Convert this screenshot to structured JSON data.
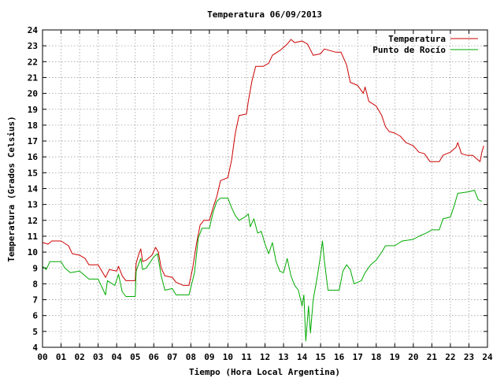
{
  "chart_data": {
    "type": "line",
    "title": "Temperatura 06/09/2013",
    "xlabel": "Tiempo (Hora Local Argentina)",
    "ylabel": "Temperatura (Grados Celsius)",
    "xlim": [
      0,
      24
    ],
    "ylim": [
      4,
      24
    ],
    "xticks": [
      0,
      1,
      2,
      3,
      4,
      5,
      6,
      7,
      8,
      9,
      10,
      11,
      12,
      13,
      14,
      15,
      16,
      17,
      18,
      19,
      20,
      21,
      22,
      23,
      24
    ],
    "xtick_labels": [
      "00",
      "01",
      "02",
      "03",
      "04",
      "05",
      "06",
      "07",
      "08",
      "09",
      "10",
      "11",
      "12",
      "13",
      "14",
      "15",
      "16",
      "17",
      "18",
      "19",
      "20",
      "21",
      "22",
      "23",
      "24"
    ],
    "yticks": [
      4,
      5,
      6,
      7,
      8,
      9,
      10,
      11,
      12,
      13,
      14,
      15,
      16,
      17,
      18,
      19,
      20,
      21,
      22,
      23,
      24
    ],
    "grid": true,
    "legend_position": "top-right",
    "series": [
      {
        "name": "Temperatura",
        "color": "#cc0000",
        "points": [
          [
            0.0,
            10.6
          ],
          [
            0.3,
            10.5
          ],
          [
            0.5,
            10.7
          ],
          [
            1.0,
            10.7
          ],
          [
            1.4,
            10.4
          ],
          [
            1.6,
            9.9
          ],
          [
            2.0,
            9.8
          ],
          [
            2.3,
            9.6
          ],
          [
            2.5,
            9.2
          ],
          [
            3.0,
            9.2
          ],
          [
            3.2,
            8.8
          ],
          [
            3.4,
            8.4
          ],
          [
            3.6,
            8.9
          ],
          [
            4.0,
            8.8
          ],
          [
            4.1,
            9.1
          ],
          [
            4.3,
            8.5
          ],
          [
            4.5,
            8.2
          ],
          [
            5.0,
            8.2
          ],
          [
            5.05,
            9.3
          ],
          [
            5.2,
            9.9
          ],
          [
            5.3,
            10.2
          ],
          [
            5.4,
            9.4
          ],
          [
            5.6,
            9.5
          ],
          [
            5.9,
            9.8
          ],
          [
            6.1,
            10.3
          ],
          [
            6.25,
            10.0
          ],
          [
            6.4,
            9.0
          ],
          [
            6.6,
            8.5
          ],
          [
            7.0,
            8.4
          ],
          [
            7.2,
            8.1
          ],
          [
            7.6,
            7.9
          ],
          [
            7.9,
            7.9
          ],
          [
            8.1,
            9.0
          ],
          [
            8.3,
            10.5
          ],
          [
            8.5,
            11.7
          ],
          [
            8.7,
            12.0
          ],
          [
            9.0,
            12.0
          ],
          [
            9.2,
            12.8
          ],
          [
            9.4,
            13.5
          ],
          [
            9.6,
            14.5
          ],
          [
            10.0,
            14.7
          ],
          [
            10.2,
            15.8
          ],
          [
            10.4,
            17.5
          ],
          [
            10.6,
            18.6
          ],
          [
            11.0,
            18.7
          ],
          [
            11.1,
            19.5
          ],
          [
            11.3,
            20.8
          ],
          [
            11.5,
            21.7
          ],
          [
            11.9,
            21.7
          ],
          [
            12.2,
            21.9
          ],
          [
            12.4,
            22.4
          ],
          [
            12.8,
            22.7
          ],
          [
            13.2,
            23.1
          ],
          [
            13.4,
            23.4
          ],
          [
            13.6,
            23.2
          ],
          [
            14.0,
            23.3
          ],
          [
            14.3,
            23.1
          ],
          [
            14.6,
            22.4
          ],
          [
            15.0,
            22.5
          ],
          [
            15.2,
            22.8
          ],
          [
            15.5,
            22.7
          ],
          [
            15.8,
            22.6
          ],
          [
            16.1,
            22.6
          ],
          [
            16.4,
            21.8
          ],
          [
            16.6,
            20.7
          ],
          [
            17.0,
            20.5
          ],
          [
            17.3,
            20.0
          ],
          [
            17.4,
            20.4
          ],
          [
            17.6,
            19.5
          ],
          [
            18.0,
            19.2
          ],
          [
            18.3,
            18.6
          ],
          [
            18.5,
            17.9
          ],
          [
            18.7,
            17.6
          ],
          [
            19.0,
            17.5
          ],
          [
            19.3,
            17.3
          ],
          [
            19.6,
            16.9
          ],
          [
            20.0,
            16.7
          ],
          [
            20.3,
            16.3
          ],
          [
            20.6,
            16.2
          ],
          [
            20.9,
            15.7
          ],
          [
            21.4,
            15.7
          ],
          [
            21.6,
            16.1
          ],
          [
            22.0,
            16.3
          ],
          [
            22.3,
            16.6
          ],
          [
            22.4,
            16.9
          ],
          [
            22.6,
            16.2
          ],
          [
            22.9,
            16.1
          ],
          [
            23.2,
            16.1
          ],
          [
            23.4,
            15.9
          ],
          [
            23.6,
            15.7
          ],
          [
            23.7,
            16.3
          ],
          [
            23.8,
            16.7
          ]
        ]
      },
      {
        "name": "Punto de Rocío",
        "color": "#00aa00",
        "points": [
          [
            0.0,
            9.1
          ],
          [
            0.2,
            8.9
          ],
          [
            0.4,
            9.4
          ],
          [
            1.0,
            9.4
          ],
          [
            1.2,
            9.0
          ],
          [
            1.5,
            8.7
          ],
          [
            2.0,
            8.8
          ],
          [
            2.3,
            8.5
          ],
          [
            2.5,
            8.3
          ],
          [
            3.0,
            8.3
          ],
          [
            3.2,
            7.8
          ],
          [
            3.4,
            7.3
          ],
          [
            3.5,
            8.2
          ],
          [
            3.9,
            7.9
          ],
          [
            4.1,
            8.6
          ],
          [
            4.3,
            7.5
          ],
          [
            4.5,
            7.2
          ],
          [
            5.0,
            7.2
          ],
          [
            5.05,
            8.8
          ],
          [
            5.2,
            9.3
          ],
          [
            5.3,
            9.6
          ],
          [
            5.4,
            8.9
          ],
          [
            5.6,
            9.0
          ],
          [
            6.0,
            9.7
          ],
          [
            6.2,
            9.9
          ],
          [
            6.4,
            8.5
          ],
          [
            6.6,
            7.6
          ],
          [
            7.0,
            7.7
          ],
          [
            7.2,
            7.3
          ],
          [
            7.6,
            7.3
          ],
          [
            7.9,
            7.3
          ],
          [
            8.2,
            8.7
          ],
          [
            8.4,
            10.9
          ],
          [
            8.6,
            11.5
          ],
          [
            9.0,
            11.5
          ],
          [
            9.2,
            12.5
          ],
          [
            9.4,
            13.2
          ],
          [
            9.6,
            13.4
          ],
          [
            10.0,
            13.4
          ],
          [
            10.2,
            12.8
          ],
          [
            10.4,
            12.3
          ],
          [
            10.6,
            12.0
          ],
          [
            10.9,
            12.2
          ],
          [
            11.1,
            12.4
          ],
          [
            11.2,
            11.6
          ],
          [
            11.4,
            12.1
          ],
          [
            11.6,
            11.2
          ],
          [
            11.8,
            11.3
          ],
          [
            12.0,
            10.5
          ],
          [
            12.2,
            9.9
          ],
          [
            12.4,
            10.6
          ],
          [
            12.6,
            9.4
          ],
          [
            12.8,
            8.8
          ],
          [
            13.0,
            8.7
          ],
          [
            13.2,
            9.6
          ],
          [
            13.4,
            8.5
          ],
          [
            13.6,
            7.9
          ],
          [
            13.8,
            7.6
          ],
          [
            14.0,
            6.6
          ],
          [
            14.1,
            7.3
          ],
          [
            14.2,
            4.4
          ],
          [
            14.35,
            6.6
          ],
          [
            14.45,
            4.9
          ],
          [
            14.6,
            7.0
          ],
          [
            14.8,
            8.3
          ],
          [
            15.0,
            9.8
          ],
          [
            15.1,
            10.7
          ],
          [
            15.2,
            9.5
          ],
          [
            15.4,
            7.6
          ],
          [
            16.0,
            7.6
          ],
          [
            16.2,
            8.8
          ],
          [
            16.4,
            9.2
          ],
          [
            16.6,
            8.9
          ],
          [
            16.8,
            8.0
          ],
          [
            17.2,
            8.2
          ],
          [
            17.4,
            8.7
          ],
          [
            17.7,
            9.2
          ],
          [
            18.0,
            9.5
          ],
          [
            18.3,
            10.0
          ],
          [
            18.5,
            10.4
          ],
          [
            19.0,
            10.4
          ],
          [
            19.4,
            10.7
          ],
          [
            20.0,
            10.8
          ],
          [
            20.3,
            11.0
          ],
          [
            20.7,
            11.2
          ],
          [
            21.0,
            11.4
          ],
          [
            21.4,
            11.4
          ],
          [
            21.6,
            12.1
          ],
          [
            22.0,
            12.2
          ],
          [
            22.2,
            12.9
          ],
          [
            22.4,
            13.7
          ],
          [
            23.0,
            13.8
          ],
          [
            23.3,
            13.9
          ],
          [
            23.5,
            13.3
          ],
          [
            23.7,
            13.2
          ]
        ]
      }
    ]
  }
}
